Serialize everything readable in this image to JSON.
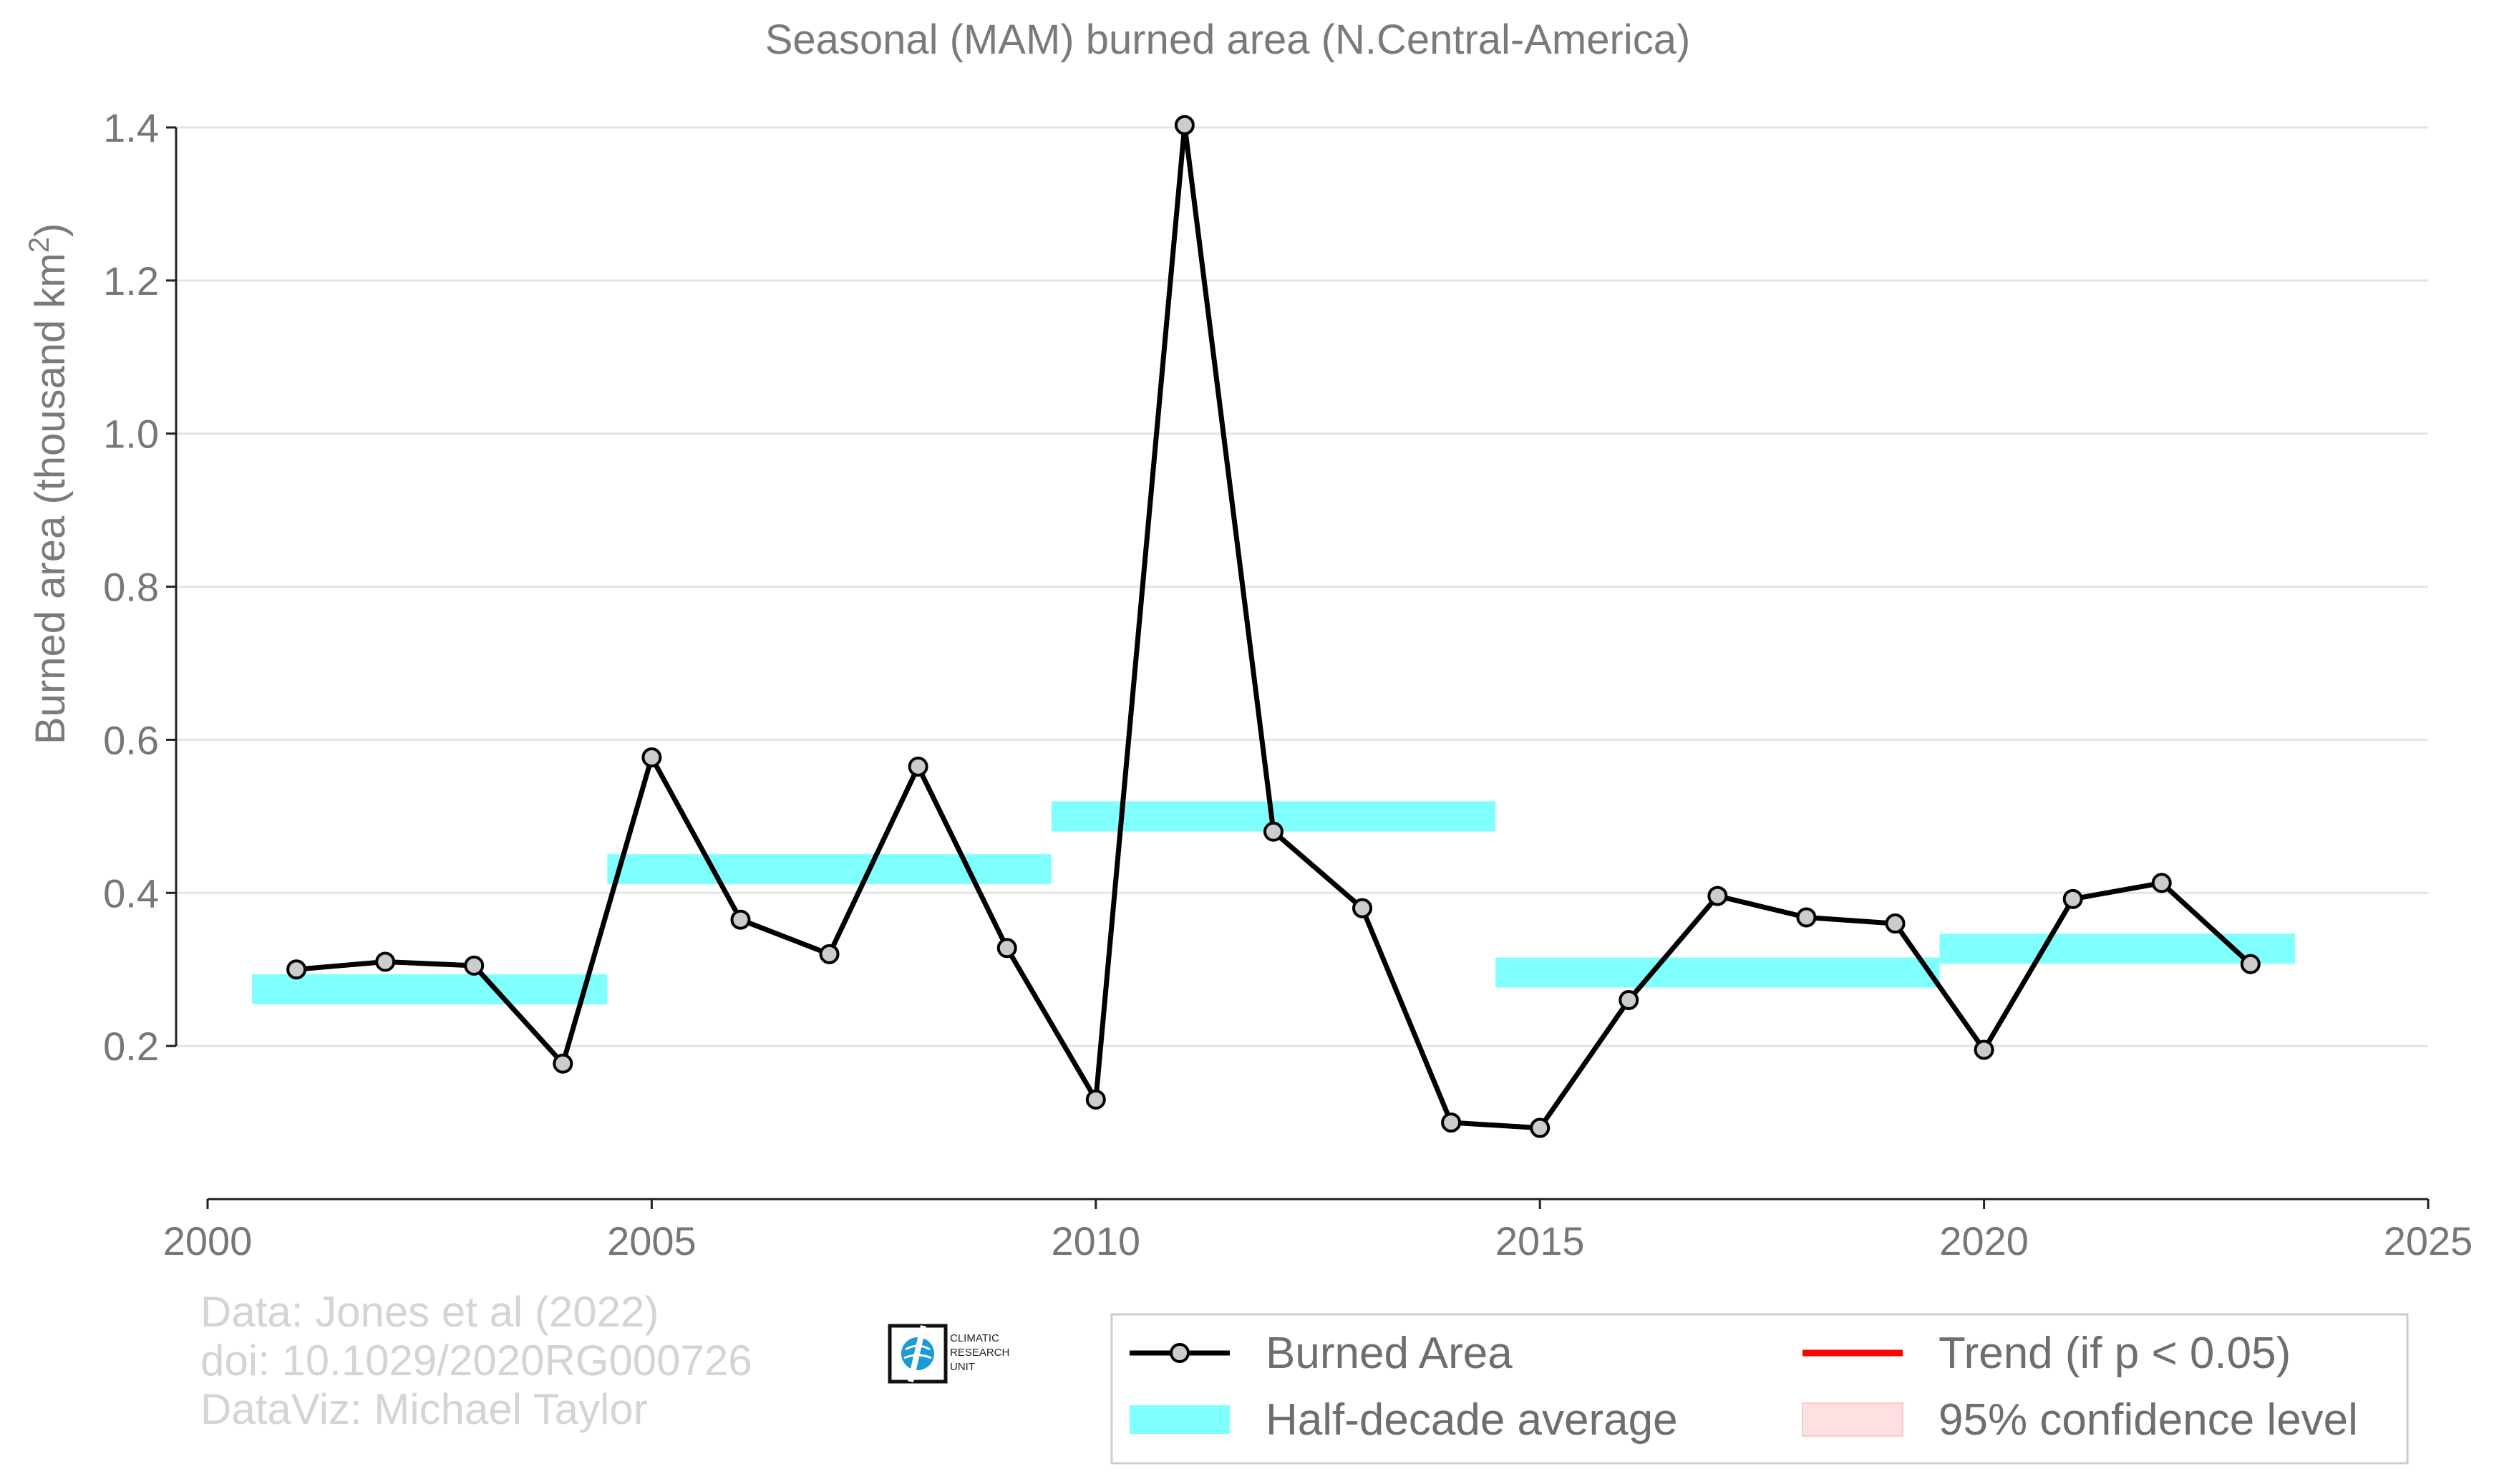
{
  "chart_data": {
    "type": "line",
    "title": "Seasonal (MAM) burned area (N.Central-America)",
    "ylabel": "Burned area (thousand km",
    "ylabel_sup": "2",
    "ylabel_end": ")",
    "xlim": [
      2000,
      2025
    ],
    "ylim": [
      0.0,
      1.4
    ],
    "xticks": [
      "2000",
      "2005",
      "2010",
      "2015",
      "2020",
      "2025"
    ],
    "yticks": [
      "0.2",
      "0.4",
      "0.6",
      "0.8",
      "1.0",
      "1.2",
      "1.4"
    ],
    "grid": true,
    "legend_position": "bottom-right",
    "series": [
      {
        "name": "Burned Area",
        "color": "#000000",
        "marker_fill": "#cccccc",
        "x": [
          2001,
          2002,
          2003,
          2004,
          2005,
          2006,
          2007,
          2008,
          2009,
          2010,
          2011,
          2012,
          2013,
          2014,
          2015,
          2016,
          2017,
          2018,
          2019,
          2020,
          2021,
          2022,
          2023
        ],
        "y": [
          0.3,
          0.31,
          0.305,
          0.177,
          0.577,
          0.365,
          0.32,
          0.565,
          0.328,
          0.13,
          1.403,
          0.48,
          0.38,
          0.1,
          0.093,
          0.26,
          0.396,
          0.368,
          0.36,
          0.195,
          0.392,
          0.413,
          0.307
        ]
      }
    ],
    "half_decade_average": {
      "name": "Half-decade average",
      "color": "#80ffff",
      "segments": [
        {
          "x0": 2000.5,
          "x1": 2004.5,
          "y": 0.274
        },
        {
          "x0": 2004.5,
          "x1": 2009.5,
          "y": 0.431
        },
        {
          "x0": 2009.5,
          "x1": 2014.5,
          "y": 0.5
        },
        {
          "x0": 2014.5,
          "x1": 2019.5,
          "y": 0.296
        },
        {
          "x0": 2019.5,
          "x1": 2023.5,
          "y": 0.327
        }
      ]
    },
    "legend": {
      "burned_area": "Burned Area",
      "half_decade": "Half-decade average",
      "trend": "Trend (if p < 0.05)",
      "confidence": "95% confidence level",
      "trend_color": "#ff0000",
      "confidence_color": "#ffe0e0"
    }
  },
  "credits": {
    "line1": "Data: Jones et al (2022)",
    "line2": "doi: 10.1029/2020RG000726",
    "line3": "DataViz: Michael Taylor"
  },
  "logo": {
    "line1": "CLIMATIC",
    "line2": "RESEARCH",
    "line3": "UNIT"
  }
}
